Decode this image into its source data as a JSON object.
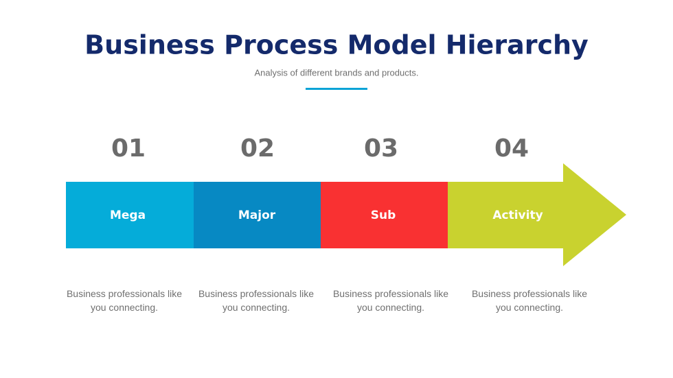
{
  "header": {
    "title": "Business Process Model Hierarchy",
    "subtitle": "Analysis of different brands and products."
  },
  "steps": [
    {
      "number": "01",
      "label": "Mega",
      "description": "Business professionals like you connecting."
    },
    {
      "number": "02",
      "label": "Major",
      "description": "Business professionals like you connecting."
    },
    {
      "number": "03",
      "label": "Sub",
      "description": "Business professionals like you connecting."
    },
    {
      "number": "04",
      "label": "Activity",
      "description": "Business professionals like you connecting."
    }
  ]
}
